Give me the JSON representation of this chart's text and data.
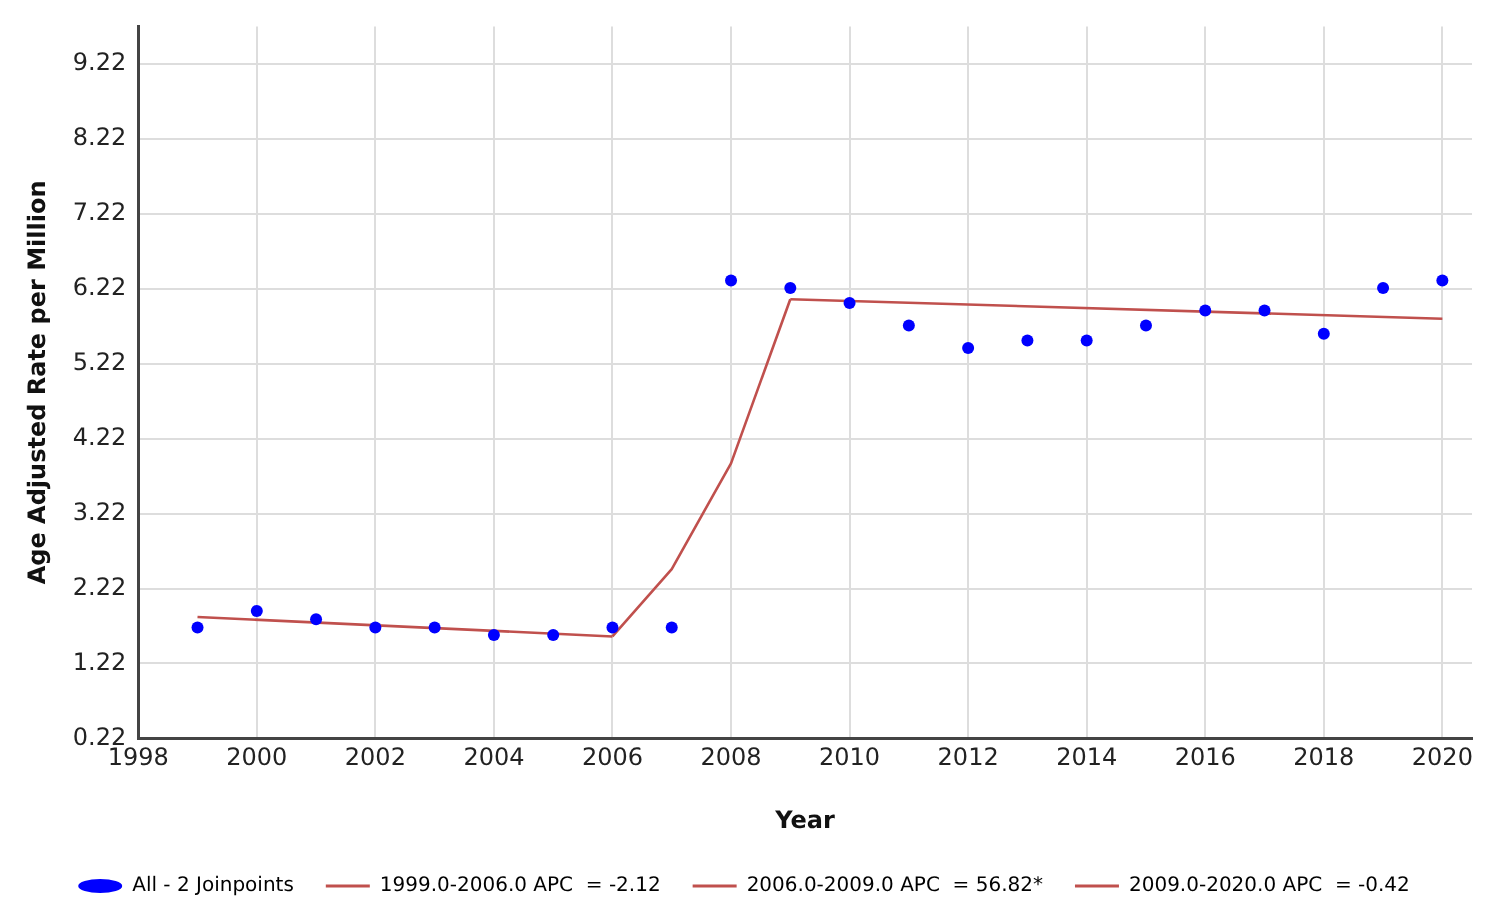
{
  "chart_data": {
    "type": "scatter",
    "xlabel": "Year",
    "ylabel": "Age Adjusted Rate per Million",
    "xlim": [
      1998,
      2020.5
    ],
    "xticks": [
      1998,
      2000,
      2002,
      2004,
      2006,
      2008,
      2010,
      2012,
      2014,
      2016,
      2018,
      2020
    ],
    "ylim": [
      0.22,
      9.72
    ],
    "yticks": [
      0.22,
      1.22,
      2.22,
      3.22,
      4.22,
      5.22,
      6.22,
      7.22,
      8.22,
      9.22
    ],
    "grid": true,
    "legend": "bottom",
    "line_style": "solid",
    "series": [
      {
        "name": "All - 2 Joinpoints",
        "marker": "circle",
        "color": "#0000ff",
        "x": [
          1999,
          2000,
          2001,
          2002,
          2003,
          2004,
          2005,
          2006,
          2007,
          2008,
          2009,
          2010,
          2011,
          2012,
          2013,
          2014,
          2015,
          2016,
          2017,
          2018,
          2019,
          2020
        ],
        "values": [
          1.7,
          1.92,
          1.81,
          1.7,
          1.7,
          1.6,
          1.6,
          1.7,
          1.7,
          6.33,
          6.23,
          6.03,
          5.73,
          5.43,
          5.53,
          5.53,
          5.73,
          5.93,
          5.93,
          5.62,
          6.23,
          6.33
        ]
      },
      {
        "name": "1999.0-2006.0 APC  = -2.12",
        "type": "line",
        "marker": "none",
        "color": "#c0504d",
        "x": [
          1999,
          2006
        ],
        "values": [
          1.84,
          1.58
        ]
      },
      {
        "name": "2006.0-2009.0 APC  = 56.82*",
        "type": "line",
        "marker": "none",
        "color": "#c0504d",
        "x": [
          2006,
          2007,
          2008,
          2009
        ],
        "values": [
          1.58,
          2.48,
          3.89,
          6.08
        ]
      },
      {
        "name": "2009.0-2020.0 APC  = -0.42",
        "type": "line",
        "marker": "none",
        "color": "#c0504d",
        "x": [
          2009,
          2020
        ],
        "values": [
          6.08,
          5.82
        ]
      }
    ]
  }
}
